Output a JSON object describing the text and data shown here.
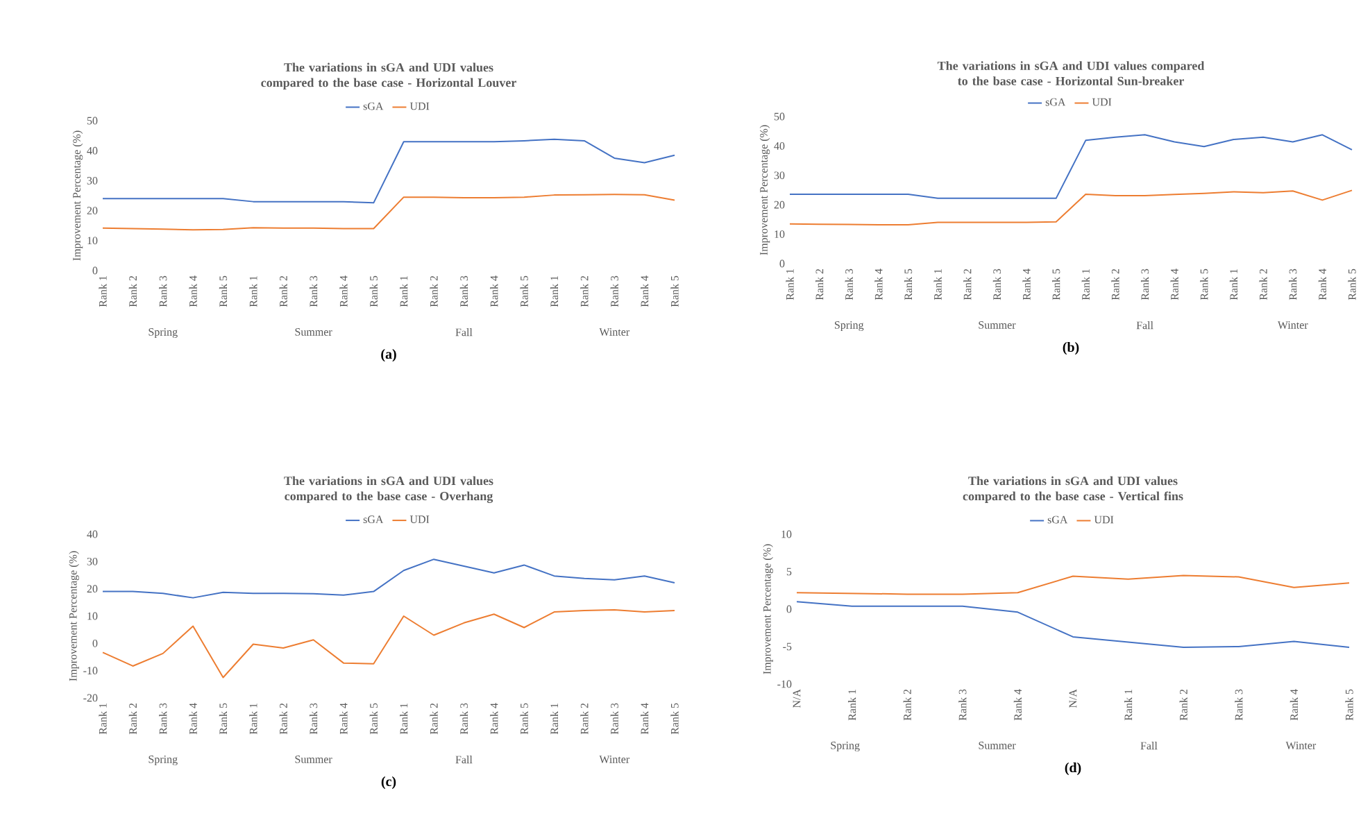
{
  "chart_data": [
    {
      "type": "line",
      "title": "The variations in sGA and UDI values compared to the base case - Horizontal Louver",
      "ylabel": "Improvement Percentage (%)",
      "categories": [
        "Rank 1",
        "Rank 2",
        "Rank 3",
        "Rank 4",
        "Rank 5",
        "Rank 1",
        "Rank 2",
        "Rank 3",
        "Rank 4",
        "Rank 5",
        "Rank 1",
        "Rank 2",
        "Rank 3",
        "Rank 4",
        "Rank 5",
        "Rank 1",
        "Rank 2",
        "Rank 3",
        "Rank 4",
        "Rank 5"
      ],
      "series": [
        {
          "name": "sGA",
          "color": "#4472c4",
          "values": [
            24,
            24,
            24,
            24,
            24,
            23,
            23,
            23,
            23,
            22.6,
            43,
            43,
            43,
            43,
            43.3,
            43.8,
            43.3,
            37.5,
            36,
            38.5
          ]
        },
        {
          "name": "UDI",
          "color": "#ed7d31",
          "values": [
            14.2,
            14,
            13.8,
            13.6,
            13.7,
            14.3,
            14.2,
            14.2,
            14,
            14,
            24.5,
            24.5,
            24.3,
            24.3,
            24.5,
            25.2,
            25.3,
            25.4,
            25.3,
            23.5
          ]
        }
      ],
      "ylim": [
        0,
        50
      ],
      "yticks": [
        0,
        10,
        20,
        30,
        40,
        50
      ],
      "legend": "top",
      "annotations": [
        "Spring",
        "Summer",
        "Fall",
        "Winter",
        "(a)"
      ]
    },
    {
      "type": "line",
      "title": "The variations in sGA and UDI values compared to the base case - Horizontal Sun-breaker",
      "ylabel": "Improvement Percentage (%)",
      "categories": [
        "Rank 1",
        "Rank 2",
        "Rank 3",
        "Rank 4",
        "Rank 5",
        "Rank 1",
        "Rank 2",
        "Rank 3",
        "Rank 4",
        "Rank 5",
        "Rank 1",
        "Rank 2",
        "Rank 3",
        "Rank 4",
        "Rank 5",
        "Rank 1",
        "Rank 2",
        "Rank 3",
        "Rank 4",
        "Rank 5"
      ],
      "series": [
        {
          "name": "sGA",
          "color": "#4472c4",
          "values": [
            23.6,
            23.6,
            23.6,
            23.6,
            23.6,
            22.2,
            22.2,
            22.2,
            22.2,
            22.2,
            41.9,
            43,
            43.8,
            41.4,
            39.8,
            42.2,
            43,
            41.4,
            43.8,
            38.7
          ]
        },
        {
          "name": "UDI",
          "color": "#ed7d31",
          "values": [
            13.5,
            13.4,
            13.3,
            13.2,
            13.2,
            14,
            14,
            14,
            14,
            14.2,
            23.6,
            23.1,
            23.1,
            23.5,
            23.9,
            24.4,
            24.1,
            24.7,
            21.6,
            24.9
          ]
        }
      ],
      "ylim": [
        0,
        50
      ],
      "yticks": [
        0,
        10,
        20,
        30,
        40,
        50
      ],
      "legend": "top",
      "annotations": [
        "Spring",
        "Summer",
        "Fall",
        "Winter",
        "(b)"
      ]
    },
    {
      "type": "line",
      "title": "The variations in sGA and UDI values compared to the base case - Overhang",
      "ylabel": "Improvement Percentage (%)",
      "categories": [
        "Rank 1",
        "Rank 2",
        "Rank 3",
        "Rank 4",
        "Rank 5",
        "Rank 1",
        "Rank 2",
        "Rank 3",
        "Rank 4",
        "Rank 5",
        "Rank 1",
        "Rank 2",
        "Rank 3",
        "Rank 4",
        "Rank 5",
        "Rank 1",
        "Rank 2",
        "Rank 3",
        "Rank 4",
        "Rank 5"
      ],
      "series": [
        {
          "name": "sGA",
          "color": "#4472c4",
          "values": [
            19,
            19,
            18.3,
            16.7,
            18.7,
            18.3,
            18.3,
            18.2,
            17.7,
            19,
            26.7,
            30.8,
            28.3,
            25.8,
            28.7,
            24.7,
            23.8,
            23.3,
            24.7,
            22.2
          ]
        },
        {
          "name": "UDI",
          "color": "#ed7d31",
          "values": [
            -3.3,
            -8.3,
            -3.7,
            6.3,
            -12.5,
            -0.3,
            -1.7,
            1.3,
            -7.2,
            -7.5,
            10,
            3,
            7.5,
            10.7,
            5.8,
            11.5,
            12,
            12.3,
            11.5,
            12
          ]
        }
      ],
      "ylim": [
        -20,
        40
      ],
      "yticks": [
        -20,
        -10,
        0,
        10,
        20,
        30,
        40
      ],
      "legend": "top",
      "annotations": [
        "Spring",
        "Summer",
        "Fall",
        "Winter",
        "(c)"
      ]
    },
    {
      "type": "line",
      "title": "The variations in sGA and UDI values compared to the base case - Vertical fins",
      "ylabel": "Improvement Percentage (%)",
      "categories": [
        "N/A",
        "Rank 1",
        "Rank 2",
        "Rank 3",
        "Rank 4",
        "N/A",
        "Rank 1",
        "Rank 2",
        "Rank 3",
        "Rank 4",
        "Rank 5"
      ],
      "series": [
        {
          "name": "sGA",
          "color": "#4472c4",
          "values": [
            1,
            0.4,
            0.4,
            0.4,
            -0.4,
            -3.7,
            -4.4,
            -5.1,
            -5,
            -4.3,
            -5.1
          ]
        },
        {
          "name": "UDI",
          "color": "#ed7d31",
          "values": [
            2.2,
            2.1,
            2,
            2,
            2.2,
            4.4,
            4,
            4.5,
            4.3,
            2.9,
            3.5
          ]
        }
      ],
      "ylim": [
        -10,
        10
      ],
      "yticks": [
        -10,
        -5,
        0,
        5,
        10
      ],
      "legend": "top",
      "annotations": [
        "Spring",
        "Summer",
        "Fall",
        "Winter",
        "(d)"
      ]
    }
  ]
}
